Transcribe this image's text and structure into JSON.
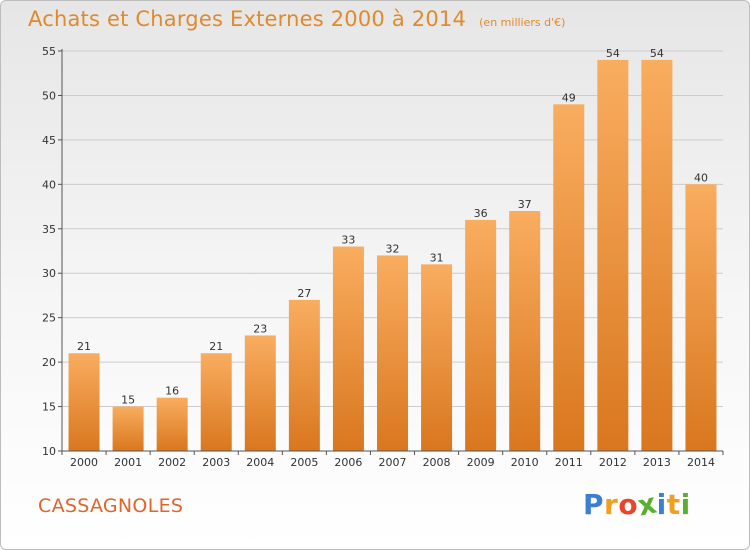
{
  "header": {
    "title": "Achats et Charges Externes 2000 à 2014",
    "unit": "(en milliers d'€)"
  },
  "footer": {
    "commune": "CASSAGNOLES",
    "logo_letters": [
      "P",
      "r",
      "o",
      "x",
      "i",
      "t",
      "i"
    ],
    "logo_colors": [
      "#3a7fd0",
      "#f0a020",
      "#e8452c",
      "#58b030",
      "#3a7fd0",
      "#f0a020",
      "#58b030"
    ]
  },
  "colors": {
    "bar_light": "#f9ad5f",
    "bar_dark": "#d9771f",
    "text": "#333333",
    "grid": "#cccccc",
    "accent": "#e08a2c"
  },
  "chart_data": {
    "type": "bar",
    "title": "Achats et Charges Externes 2000 à 2014",
    "subtitle": "(en milliers d'€)",
    "xlabel": "",
    "ylabel": "",
    "categories": [
      "2000",
      "2001",
      "2002",
      "2003",
      "2004",
      "2005",
      "2006",
      "2007",
      "2008",
      "2009",
      "2010",
      "2011",
      "2012",
      "2013",
      "2014"
    ],
    "values": [
      21,
      15,
      16,
      21,
      23,
      27,
      33,
      32,
      31,
      36,
      37,
      49,
      54,
      54,
      40
    ],
    "ylim": [
      10,
      55
    ],
    "yticks": [
      10,
      15,
      20,
      25,
      30,
      35,
      40,
      45,
      50,
      55
    ],
    "grid": true,
    "legend": "none"
  }
}
